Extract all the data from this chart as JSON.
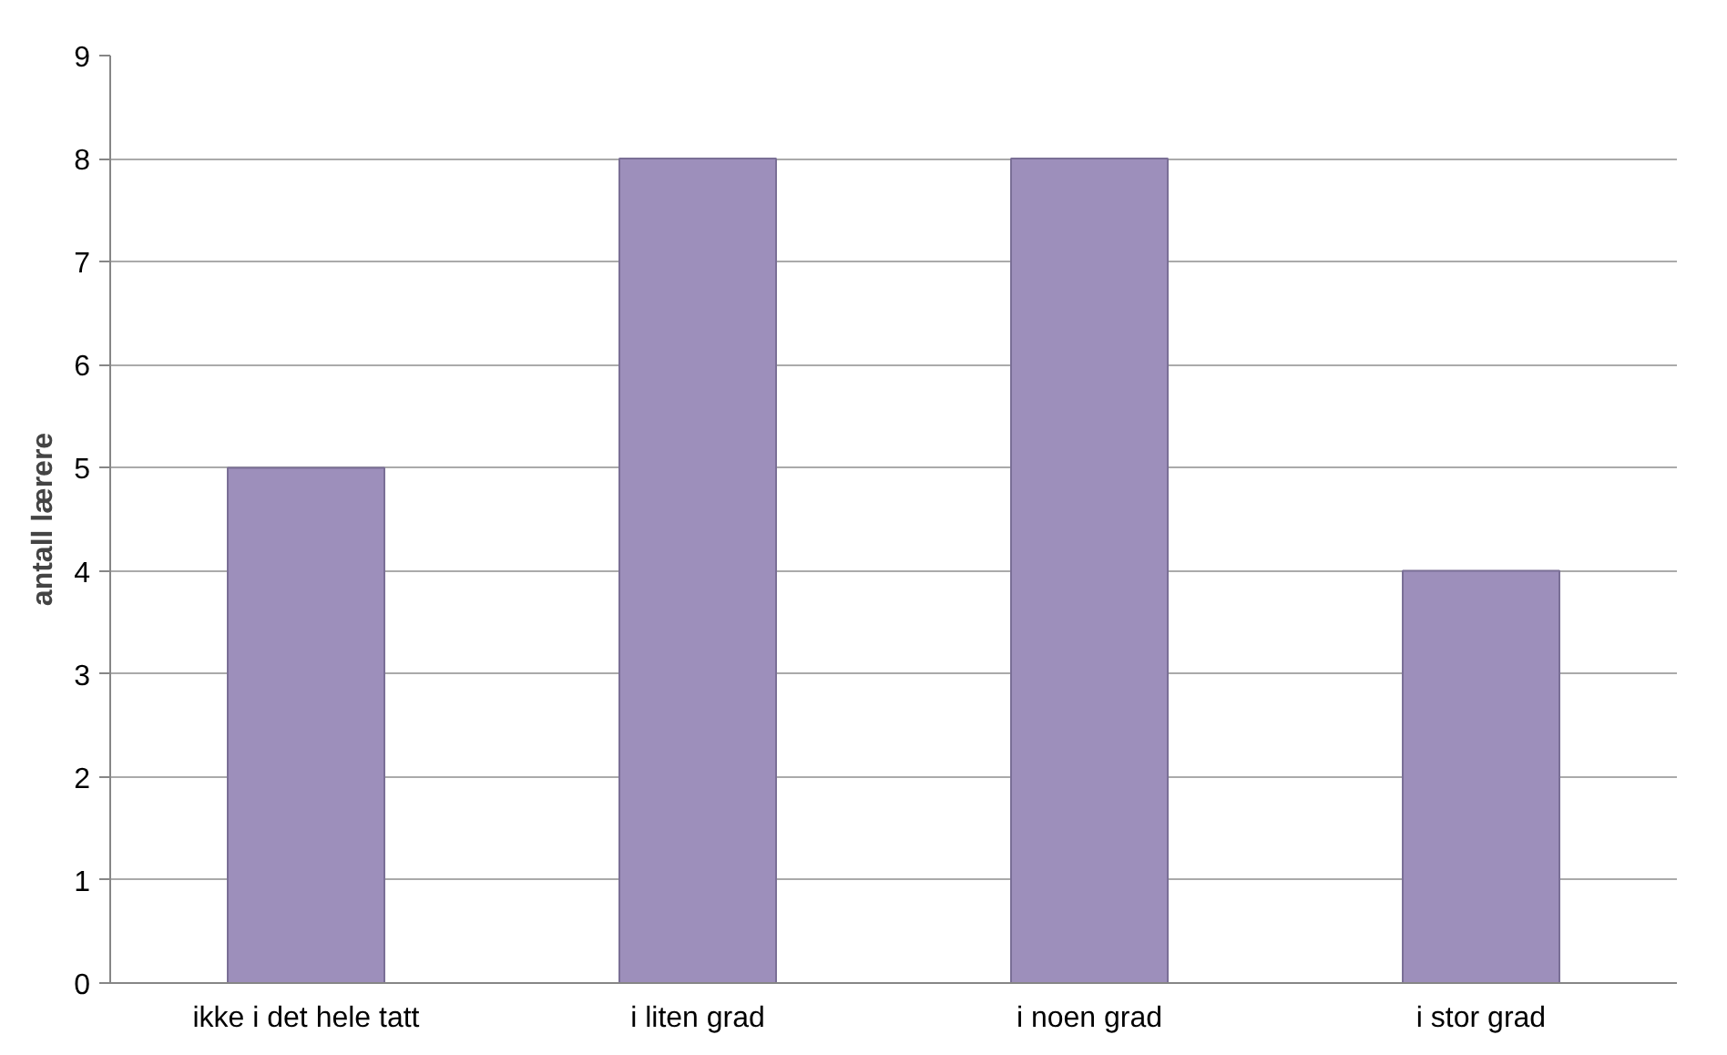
{
  "chart_data": {
    "type": "bar",
    "ylabel": "antall lærere",
    "categories": [
      "ikke i det hele tatt",
      "i liten grad",
      "i noen grad",
      "i stor grad"
    ],
    "values": [
      5,
      8,
      8,
      4
    ],
    "color": "#9d8fbb",
    "ylim": [
      0,
      9
    ],
    "yticks": [
      0,
      1,
      2,
      3,
      4,
      5,
      6,
      7,
      8,
      9
    ],
    "grid": "y"
  }
}
